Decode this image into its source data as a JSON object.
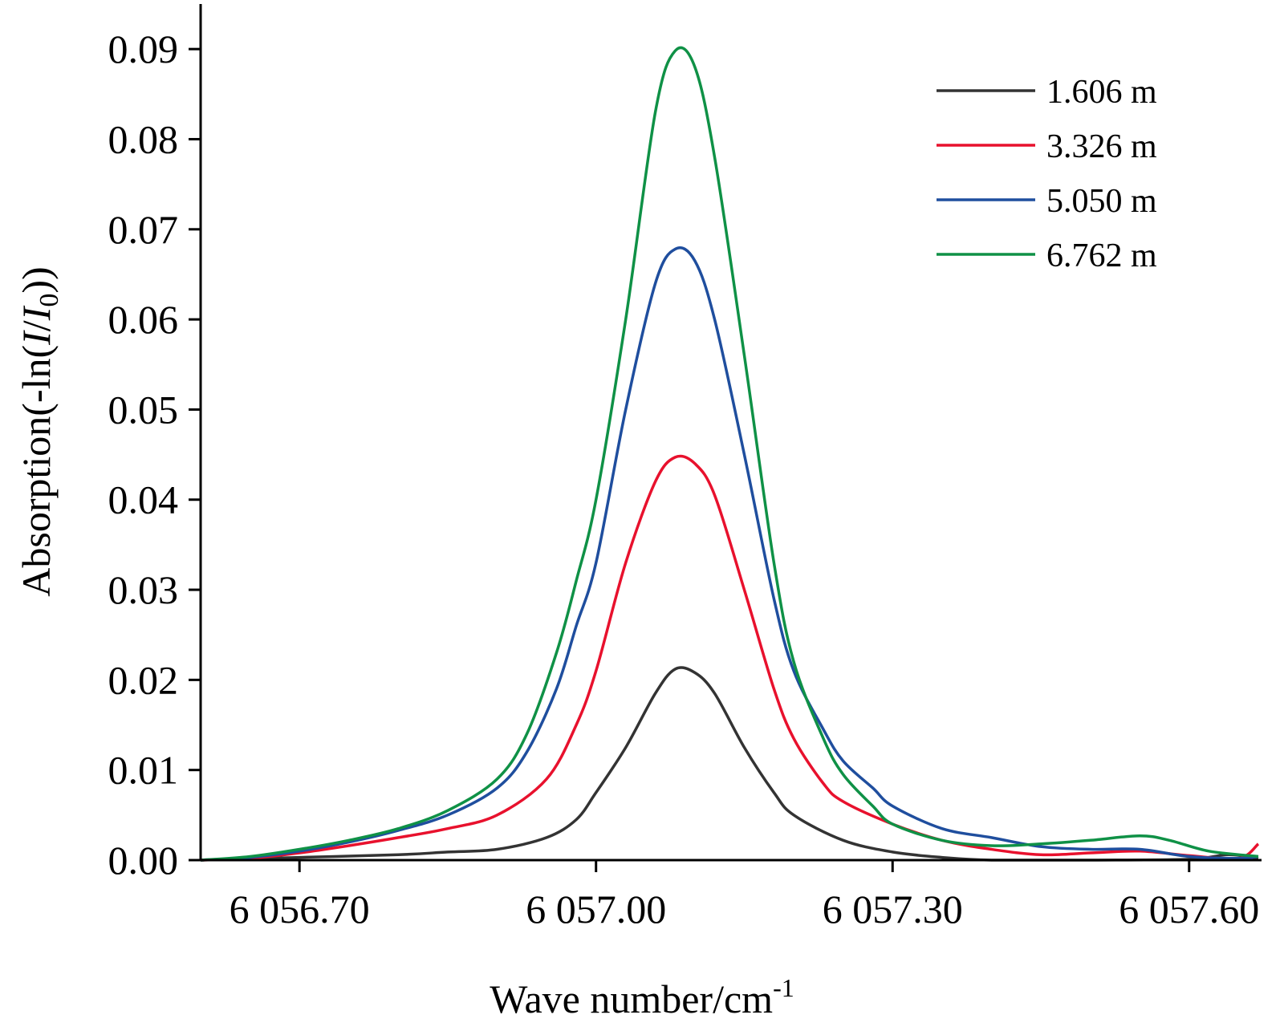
{
  "chart_data": {
    "type": "line",
    "xlabel_main": "Wave number/cm",
    "xlabel_sup": "-1",
    "ylabel_prefix": "Absorption(-ln(",
    "ylabel_I": "I",
    "ylabel_slash": "/",
    "ylabel_I0": "I",
    "ylabel_I0_sub": "0",
    "ylabel_suffix": "))",
    "xlim": [
      6056.6,
      6057.67
    ],
    "ylim": [
      0,
      0.095
    ],
    "x_ticks": [
      {
        "value": 6056.7,
        "label": "6 056.70"
      },
      {
        "value": 6057.0,
        "label": "6 057.00"
      },
      {
        "value": 6057.3,
        "label": "6 057.30"
      },
      {
        "value": 6057.6,
        "label": "6 057.60"
      }
    ],
    "y_ticks": [
      {
        "value": 0.0,
        "label": "0.00"
      },
      {
        "value": 0.01,
        "label": "0.01"
      },
      {
        "value": 0.02,
        "label": "0.02"
      },
      {
        "value": 0.03,
        "label": "0.03"
      },
      {
        "value": 0.04,
        "label": "0.04"
      },
      {
        "value": 0.05,
        "label": "0.05"
      },
      {
        "value": 0.06,
        "label": "0.06"
      },
      {
        "value": 0.07,
        "label": "0.07"
      },
      {
        "value": 0.08,
        "label": "0.08"
      },
      {
        "value": 0.09,
        "label": "0.09"
      }
    ],
    "grid": false,
    "legend_position": "top-right",
    "series": [
      {
        "name": "1.606 m",
        "color": "#333333",
        "points": [
          [
            6056.6,
            0.0
          ],
          [
            6056.7,
            0.0003
          ],
          [
            6056.8,
            0.0006
          ],
          [
            6056.85,
            0.0009
          ],
          [
            6056.9,
            0.0012
          ],
          [
            6056.95,
            0.0025
          ],
          [
            6056.98,
            0.0045
          ],
          [
            6057.0,
            0.0075
          ],
          [
            6057.03,
            0.0125
          ],
          [
            6057.06,
            0.0185
          ],
          [
            6057.08,
            0.0212
          ],
          [
            6057.1,
            0.0208
          ],
          [
            6057.12,
            0.0185
          ],
          [
            6057.15,
            0.0125
          ],
          [
            6057.18,
            0.0075
          ],
          [
            6057.2,
            0.005
          ],
          [
            6057.25,
            0.0022
          ],
          [
            6057.3,
            0.0009
          ],
          [
            6057.35,
            0.0003
          ],
          [
            6057.4,
            0.0
          ],
          [
            6057.5,
            0.0
          ],
          [
            6057.6,
            0.0001
          ],
          [
            6057.64,
            0.0006
          ],
          [
            6057.67,
            0.0002
          ]
        ]
      },
      {
        "name": "3.326 m",
        "color": "#e8112d",
        "points": [
          [
            6056.6,
            0.0
          ],
          [
            6056.65,
            0.0002
          ],
          [
            6056.7,
            0.0008
          ],
          [
            6056.75,
            0.0016
          ],
          [
            6056.8,
            0.0025
          ],
          [
            6056.85,
            0.0035
          ],
          [
            6056.9,
            0.005
          ],
          [
            6056.95,
            0.009
          ],
          [
            6056.98,
            0.015
          ],
          [
            6057.0,
            0.021
          ],
          [
            6057.03,
            0.033
          ],
          [
            6057.06,
            0.042
          ],
          [
            6057.08,
            0.0447
          ],
          [
            6057.1,
            0.044
          ],
          [
            6057.12,
            0.0405
          ],
          [
            6057.15,
            0.03
          ],
          [
            6057.18,
            0.019
          ],
          [
            6057.2,
            0.0135
          ],
          [
            6057.23,
            0.0085
          ],
          [
            6057.25,
            0.0065
          ],
          [
            6057.3,
            0.004
          ],
          [
            6057.35,
            0.0022
          ],
          [
            6057.4,
            0.0012
          ],
          [
            6057.45,
            0.0006
          ],
          [
            6057.5,
            0.0008
          ],
          [
            6057.55,
            0.001
          ],
          [
            6057.6,
            0.0005
          ],
          [
            6057.65,
            0.0002
          ],
          [
            6057.67,
            0.0018
          ]
        ]
      },
      {
        "name": "5.050 m",
        "color": "#1f4e9e",
        "points": [
          [
            6056.6,
            0.0
          ],
          [
            6056.65,
            0.0003
          ],
          [
            6056.7,
            0.001
          ],
          [
            6056.75,
            0.002
          ],
          [
            6056.8,
            0.0033
          ],
          [
            6056.85,
            0.005
          ],
          [
            6056.9,
            0.008
          ],
          [
            6056.93,
            0.012
          ],
          [
            6056.96,
            0.019
          ],
          [
            6056.98,
            0.026
          ],
          [
            6057.0,
            0.033
          ],
          [
            6057.03,
            0.05
          ],
          [
            6057.06,
            0.064
          ],
          [
            6057.08,
            0.0678
          ],
          [
            6057.1,
            0.0665
          ],
          [
            6057.12,
            0.06
          ],
          [
            6057.15,
            0.045
          ],
          [
            6057.18,
            0.029
          ],
          [
            6057.2,
            0.021
          ],
          [
            6057.23,
            0.0145
          ],
          [
            6057.25,
            0.011
          ],
          [
            6057.28,
            0.008
          ],
          [
            6057.3,
            0.006
          ],
          [
            6057.35,
            0.0035
          ],
          [
            6057.4,
            0.0025
          ],
          [
            6057.45,
            0.0015
          ],
          [
            6057.5,
            0.0012
          ],
          [
            6057.55,
            0.0012
          ],
          [
            6057.6,
            0.0004
          ],
          [
            6057.65,
            0.0002
          ],
          [
            6057.67,
            0.0004
          ]
        ]
      },
      {
        "name": "6.762 m",
        "color": "#0f9146",
        "points": [
          [
            6056.6,
            0.0
          ],
          [
            6056.65,
            0.0004
          ],
          [
            6056.7,
            0.0012
          ],
          [
            6056.75,
            0.0022
          ],
          [
            6056.8,
            0.0035
          ],
          [
            6056.85,
            0.0055
          ],
          [
            6056.9,
            0.009
          ],
          [
            6056.93,
            0.014
          ],
          [
            6056.96,
            0.023
          ],
          [
            6056.98,
            0.031
          ],
          [
            6057.0,
            0.04
          ],
          [
            6057.03,
            0.06
          ],
          [
            6057.06,
            0.083
          ],
          [
            6057.08,
            0.0898
          ],
          [
            6057.1,
            0.088
          ],
          [
            6057.12,
            0.078
          ],
          [
            6057.15,
            0.056
          ],
          [
            6057.18,
            0.033
          ],
          [
            6057.2,
            0.022
          ],
          [
            6057.23,
            0.0135
          ],
          [
            6057.25,
            0.0095
          ],
          [
            6057.28,
            0.006
          ],
          [
            6057.3,
            0.004
          ],
          [
            6057.35,
            0.0022
          ],
          [
            6057.4,
            0.0016
          ],
          [
            6057.45,
            0.0018
          ],
          [
            6057.5,
            0.0022
          ],
          [
            6057.55,
            0.0027
          ],
          [
            6057.58,
            0.0022
          ],
          [
            6057.62,
            0.001
          ],
          [
            6057.67,
            0.0004
          ]
        ]
      }
    ]
  }
}
